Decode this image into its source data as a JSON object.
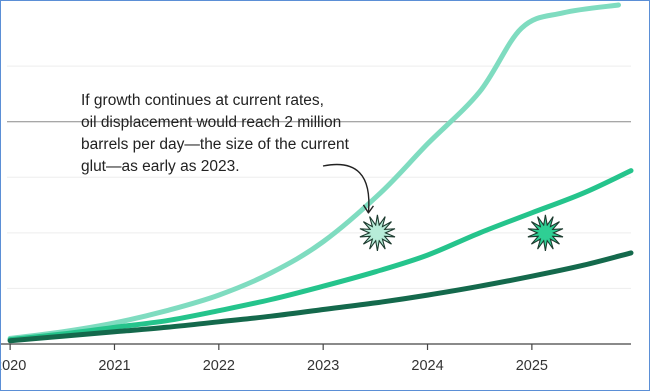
{
  "chart_data": {
    "type": "line",
    "title": "",
    "xlabel": "",
    "ylabel": "",
    "xlim": [
      2019.97,
      2025.95
    ],
    "ylim": [
      0,
      3.05
    ],
    "x_ticks": [
      2020,
      2021,
      2022,
      2023,
      2024,
      2025
    ],
    "x_tick_labels": [
      "2020",
      "2021",
      "2022",
      "2023",
      "2024",
      "2025"
    ],
    "grid": "horizontal",
    "gridlines_y": [
      0.5,
      1.0,
      1.5,
      2.0,
      2.5
    ],
    "reference_line": {
      "y": 2.0
    },
    "series": [
      {
        "color": "#7fdcc0",
        "x": [
          2020.0,
          2020.5,
          2021.0,
          2021.5,
          2022.0,
          2022.5,
          2023.0,
          2023.55,
          2024.0,
          2024.5,
          2024.9,
          2025.3,
          2025.83
        ],
        "y": [
          0.05,
          0.11,
          0.19,
          0.3,
          0.44,
          0.64,
          0.92,
          1.36,
          1.8,
          2.27,
          2.84,
          2.98,
          3.05
        ]
      },
      {
        "color": "#25c48c",
        "x": [
          2020.0,
          2020.5,
          2021.0,
          2021.5,
          2022.0,
          2022.5,
          2023.0,
          2023.5,
          2024.0,
          2024.5,
          2025.0,
          2025.5,
          2025.95
        ],
        "y": [
          0.04,
          0.09,
          0.15,
          0.21,
          0.3,
          0.4,
          0.52,
          0.65,
          0.8,
          1.0,
          1.18,
          1.36,
          1.56
        ]
      },
      {
        "color": "#14694c",
        "x": [
          2020.0,
          2020.5,
          2021.0,
          2021.5,
          2022.0,
          2022.5,
          2023.0,
          2023.5,
          2024.0,
          2024.5,
          2025.0,
          2025.5,
          2025.95
        ],
        "y": [
          0.03,
          0.07,
          0.11,
          0.15,
          0.2,
          0.25,
          0.31,
          0.37,
          0.44,
          0.52,
          0.61,
          0.71,
          0.82
        ]
      }
    ],
    "markers": [
      {
        "x": 2023.52,
        "y": 1.0,
        "color": "#b7ecd8"
      },
      {
        "x": 2025.13,
        "y": 1.0,
        "color": "#2fcf94"
      }
    ],
    "annotation": {
      "lines": [
        "If growth continues at current rates,",
        "oil displacement would reach 2 million",
        "barrels per day—the size of the current",
        "glut—as early as 2023."
      ],
      "points_to_marker": 0
    }
  }
}
